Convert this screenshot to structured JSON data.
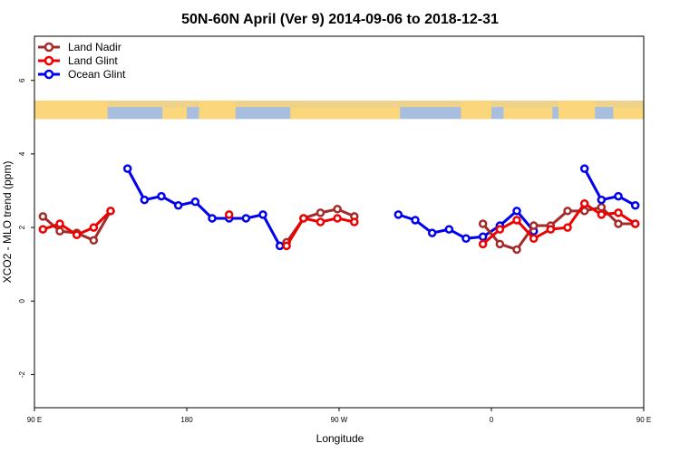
{
  "chart_data": {
    "type": "line",
    "title": "50N-60N April (Ver 9)   2014-09-06 to 2018-12-31",
    "xlabel": "Longitude",
    "ylabel": "XCO2 - MLO trend (ppm)",
    "xlim": [
      90,
      450
    ],
    "ylim": [
      -2.9,
      7.2
    ],
    "x_ticks": [
      {
        "value": 90,
        "label": "90 E"
      },
      {
        "value": 180,
        "label": "180"
      },
      {
        "value": 270,
        "label": "90 W"
      },
      {
        "value": 360,
        "label": "0"
      },
      {
        "value": 450,
        "label": "90 E"
      },
      {
        "value": 540,
        "label": "180"
      }
    ],
    "y_ticks": [
      -2,
      0,
      2,
      4,
      6
    ],
    "map_band": {
      "y_bottom": 4.95,
      "y_top": 5.45,
      "ocean_color": "#a7bedf",
      "land_color": "#fcd67a"
    },
    "legend_position": "top-left",
    "series": [
      {
        "name": "Land Nadir",
        "color": "#a52a2a",
        "x": [
          95,
          105,
          115,
          125,
          135,
          355,
          365,
          375,
          385,
          395,
          405,
          415,
          425,
          435,
          445,
          455,
          465,
          475,
          485,
          495,
          505
        ],
        "y": [
          2.3,
          1.9,
          1.85,
          1.65,
          2.45,
          2.1,
          1.55,
          1.4,
          2.05,
          2.05,
          2.45,
          2.45,
          2.55,
          2.1,
          2.1,
          2.3,
          1.9,
          1.65,
          2.45,
          1.95,
          null
        ]
      },
      {
        "name": "Land Glint",
        "color": "#ee0000",
        "x": [
          95,
          105,
          115,
          125,
          135,
          355,
          365,
          375,
          385,
          395,
          405,
          415,
          425,
          435,
          445,
          455,
          465,
          475,
          485,
          495
        ],
        "y": [
          1.95,
          2.1,
          1.8,
          2.0,
          2.45,
          1.55,
          1.95,
          2.2,
          1.7,
          1.95,
          2.0,
          2.65,
          2.35,
          2.4,
          2.1,
          1.95,
          2.1,
          1.8,
          2.0,
          2.45
        ]
      },
      {
        "name": "Ocean Glint",
        "color": "#0000ee",
        "x": [
          145,
          155,
          165,
          175,
          185,
          195,
          205,
          215,
          225,
          235
        ],
        "y": [
          3.6,
          2.75,
          2.85,
          2.6,
          2.7,
          2.25,
          2.25,
          2.25,
          2.35,
          1.5
        ]
      }
    ],
    "extra_points": {
      "land_nadir_right": {
        "x": [
          239,
          249,
          259,
          269,
          279,
          289
        ],
        "y": [
          1.6,
          2.25,
          2.4,
          2.5,
          2.3,
          null
        ]
      },
      "land_glint_right": {
        "x": [
          205,
          239,
          249,
          259,
          269,
          279
        ],
        "y": [
          2.35,
          1.5,
          2.25,
          2.15,
          2.25,
          2.15
        ]
      },
      "ocean_glint_right": {
        "x": [
          305,
          315,
          325,
          335,
          345,
          355,
          365,
          375,
          385
        ],
        "y": [
          2.35,
          2.2,
          1.85,
          1.95,
          1.7,
          1.75,
          2.05,
          2.45,
          1.9
        ]
      },
      "ocean_glint_far": {
        "x": [
          505,
          515,
          525,
          535
        ],
        "y": [
          3.6,
          2.75,
          2.85,
          2.6
        ]
      }
    }
  }
}
